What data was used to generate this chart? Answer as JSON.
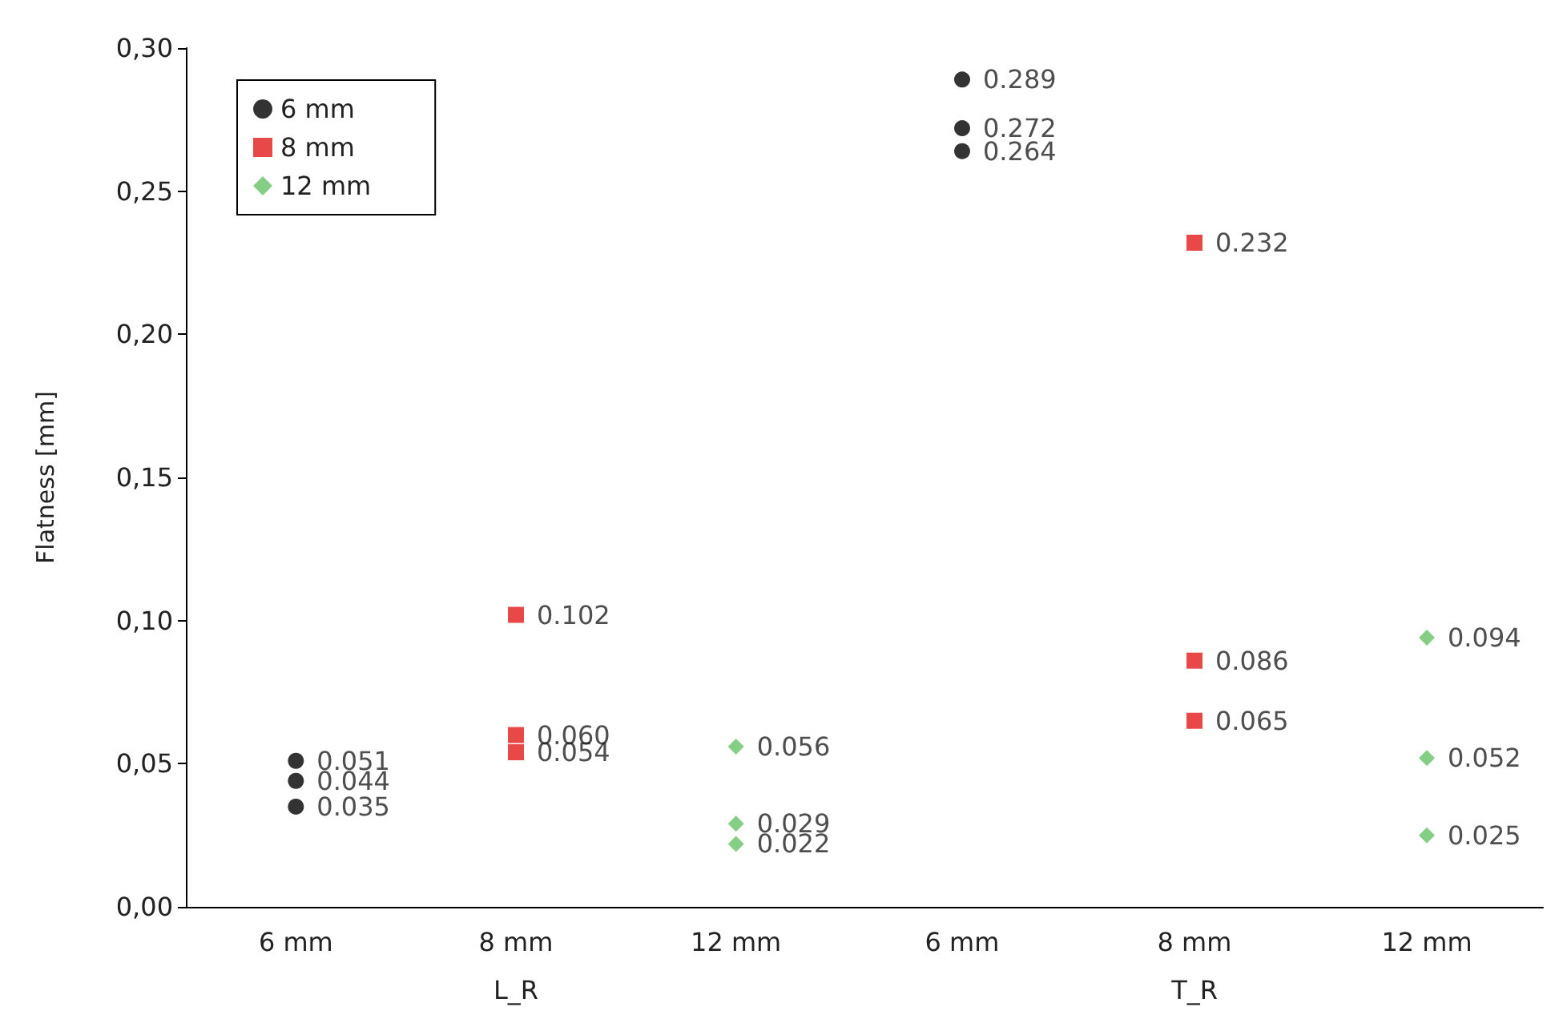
{
  "chart_data": [
    {
      "type": "scatter",
      "ylabel": "Flatness [mm]",
      "xlabel": "L_R",
      "categories": [
        "6 mm",
        "8 mm",
        "12 mm"
      ],
      "ylim": [
        0,
        0.3
      ],
      "yticks": [
        {
          "value": 0,
          "label": "0,00"
        },
        {
          "value": 0.05,
          "label": "0,05"
        },
        {
          "value": 0.1,
          "label": "0,10"
        },
        {
          "value": 0.15,
          "label": "0,15"
        },
        {
          "value": 0.2,
          "label": "0,20"
        },
        {
          "value": 0.25,
          "label": "0,25"
        },
        {
          "value": 0.3,
          "label": "0,30"
        }
      ],
      "grid": false,
      "legend": "top left",
      "series": [
        {
          "name": "6 mm",
          "color": "#000000",
          "marker": "circle",
          "values": [
            0.051,
            null,
            null
          ],
          "value_labels": [
            "0.051",
            null,
            null
          ]
        },
        {
          "color": "#000000",
          "marker": "circle",
          "values": [
            0.044,
            null,
            null
          ],
          "value_labels": [
            "0.044",
            null,
            null
          ]
        },
        {
          "color": "#000000",
          "marker": "circle",
          "values": [
            0.035,
            null,
            null
          ],
          "value_labels": [
            "0.035",
            null,
            null
          ]
        },
        {
          "name": "8 mm",
          "color": "#e31a1c",
          "marker": "square",
          "values": [
            null,
            0.102,
            null
          ],
          "value_labels": [
            null,
            "0.102",
            null
          ]
        },
        {
          "color": "#e31a1c",
          "marker": "square",
          "values": [
            null,
            0.06,
            null
          ],
          "value_labels": [
            null,
            "0.060",
            null
          ]
        },
        {
          "color": "#e31a1c",
          "marker": "square",
          "values": [
            null,
            0.054,
            null
          ],
          "value_labels": [
            null,
            "0.054",
            null
          ]
        },
        {
          "name": "12 mm",
          "color": "#66c266",
          "marker": "diamond",
          "values": [
            null,
            null,
            0.056
          ],
          "value_labels": [
            null,
            null,
            "0.056"
          ]
        },
        {
          "color": "#66c266",
          "marker": "diamond",
          "values": [
            null,
            null,
            0.029
          ],
          "value_labels": [
            null,
            null,
            "0.029"
          ]
        },
        {
          "color": "#66c266",
          "marker": "diamond",
          "values": [
            null,
            null,
            0.022
          ],
          "value_labels": [
            null,
            null,
            "0.022"
          ]
        }
      ]
    },
    {
      "type": "scatter",
      "xlabel": "T_R",
      "categories": [
        "6 mm",
        "8 mm",
        "12 mm"
      ],
      "ylim": [
        0,
        0.3
      ],
      "tick_labels": "x",
      "grid": false,
      "series": [
        {
          "color": "#000000",
          "marker": "circle",
          "values": [
            0.289,
            null,
            null
          ],
          "value_labels": [
            "0.289",
            null,
            null
          ]
        },
        {
          "color": "#000000",
          "marker": "circle",
          "values": [
            0.272,
            null,
            null
          ],
          "value_labels": [
            "0.272",
            null,
            null
          ]
        },
        {
          "color": "#000000",
          "marker": "circle",
          "values": [
            0.264,
            null,
            null
          ],
          "value_labels": [
            "0.264",
            null,
            null
          ]
        },
        {
          "color": "#e31a1c",
          "marker": "square",
          "values": [
            null,
            0.232,
            null
          ],
          "value_labels": [
            null,
            "0.232",
            null
          ]
        },
        {
          "color": "#e31a1c",
          "marker": "square",
          "values": [
            null,
            0.086,
            null
          ],
          "value_labels": [
            null,
            "0.086",
            null
          ]
        },
        {
          "color": "#e31a1c",
          "marker": "square",
          "values": [
            null,
            0.065,
            null
          ],
          "value_labels": [
            null,
            "0.065",
            null
          ]
        },
        {
          "color": "#66c266",
          "marker": "diamond",
          "values": [
            null,
            null,
            0.094
          ],
          "value_labels": [
            null,
            null,
            "0.094"
          ]
        },
        {
          "color": "#66c266",
          "marker": "diamond",
          "values": [
            null,
            null,
            0.052
          ],
          "value_labels": [
            null,
            null,
            "0.052"
          ]
        },
        {
          "color": "#66c266",
          "marker": "diamond",
          "values": [
            null,
            null,
            0.025
          ],
          "value_labels": [
            null,
            null,
            "0.025"
          ]
        }
      ]
    }
  ]
}
